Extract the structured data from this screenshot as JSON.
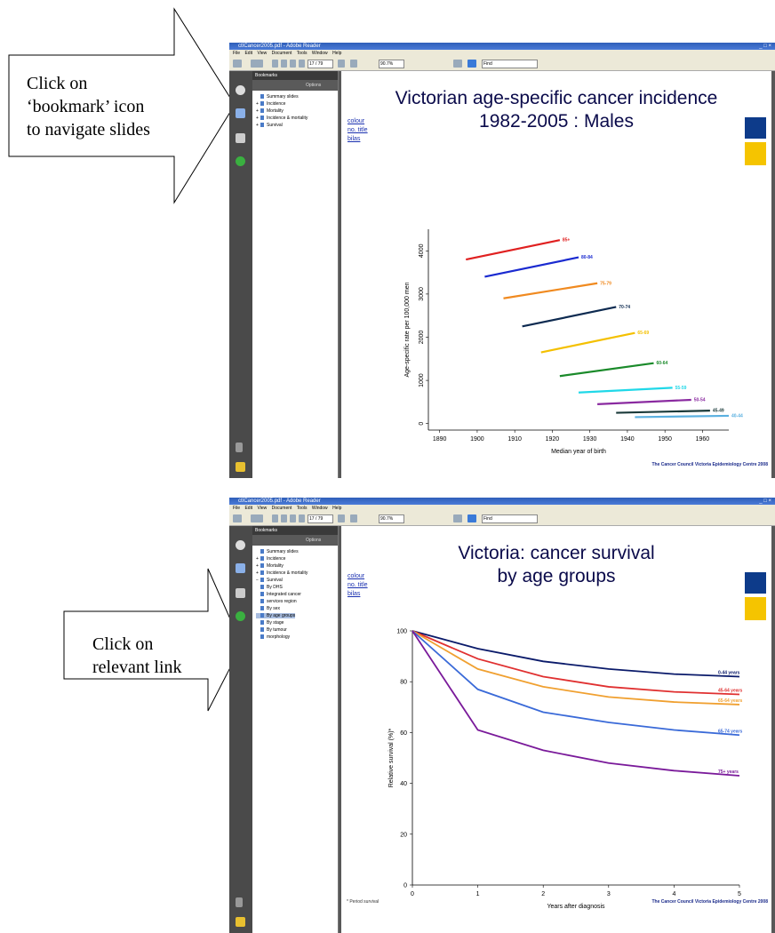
{
  "callout_top": {
    "lines": [
      "Click on",
      "‘bookmark’ icon",
      "to navigate slides"
    ]
  },
  "callout_bottom": {
    "lines": [
      "Click on",
      "relevant link"
    ]
  },
  "app": {
    "window_title": "ctICancer2005.pdf - Adobe Reader",
    "menu": [
      "File",
      "Edit",
      "View",
      "Document",
      "Tools",
      "Window",
      "Help"
    ],
    "page_box": "17 / 79",
    "zoom_box": "90.7%",
    "find_box": "Find",
    "bookmarks_header": "Bookmarks",
    "options_label": "Options"
  },
  "screen1": {
    "bookmarks": [
      {
        "label": "Summary slides",
        "expand": "",
        "selected": false
      },
      {
        "label": "Incidence",
        "expand": "+",
        "selected": false
      },
      {
        "label": "Mortality",
        "expand": "+",
        "selected": false
      },
      {
        "label": "Incidence & mortality",
        "expand": "+",
        "selected": false
      },
      {
        "label": "Survival",
        "expand": "+",
        "selected": false
      }
    ],
    "slide": {
      "title_line1": "Victorian age-specific cancer incidence",
      "title_line2": "1982-2005 : Males",
      "links": [
        "colour",
        "no. title",
        "bilas"
      ],
      "footer": "The Cancer Council Victoria Epidemiology Centre 2008"
    },
    "chart_data": {
      "type": "line",
      "xlabel": "Median year of birth",
      "ylabel": "Age-specific rate per 100,000 men",
      "x_ticks": [
        "1890",
        "1900",
        "1910",
        "1920",
        "1930",
        "1940",
        "1950",
        "1960"
      ],
      "y_ticks": [
        "0",
        "1000",
        "2000",
        "3000",
        "4000"
      ],
      "xlim": [
        1887,
        1967
      ],
      "ylim": [
        -150,
        4500
      ],
      "series": [
        {
          "name": "85+",
          "color": "#e02020",
          "x": [
            1897,
            1922
          ],
          "y": [
            3800,
            4250
          ]
        },
        {
          "name": "80-84",
          "color": "#1a2ad0",
          "x": [
            1902,
            1927
          ],
          "y": [
            3400,
            3850
          ]
        },
        {
          "name": "75-79",
          "color": "#f08a20",
          "x": [
            1907,
            1932
          ],
          "y": [
            2900,
            3250
          ]
        },
        {
          "name": "70-74",
          "color": "#0d2a50",
          "x": [
            1912,
            1937
          ],
          "y": [
            2250,
            2700
          ]
        },
        {
          "name": "65-69",
          "color": "#f4c000",
          "x": [
            1917,
            1942
          ],
          "y": [
            1650,
            2100
          ]
        },
        {
          "name": "60-64",
          "color": "#1a8a2a",
          "x": [
            1922,
            1947
          ],
          "y": [
            1100,
            1400
          ]
        },
        {
          "name": "55-59",
          "color": "#20d8e8",
          "x": [
            1927,
            1952
          ],
          "y": [
            720,
            830
          ]
        },
        {
          "name": "50-54",
          "color": "#8a2aa0",
          "x": [
            1932,
            1957
          ],
          "y": [
            450,
            550
          ]
        },
        {
          "name": "45-49",
          "color": "#1a3a3a",
          "x": [
            1937,
            1962
          ],
          "y": [
            250,
            300
          ]
        },
        {
          "name": "40-44",
          "color": "#5ab0e0",
          "x": [
            1942,
            1967
          ],
          "y": [
            150,
            180
          ]
        }
      ]
    }
  },
  "screen2": {
    "bookmarks": [
      {
        "label": "Summary slides",
        "expand": "",
        "selected": false
      },
      {
        "label": "Incidence",
        "expand": "+",
        "selected": false
      },
      {
        "label": "Mortality",
        "expand": "+",
        "selected": false
      },
      {
        "label": "Incidence & mortality",
        "expand": "+",
        "selected": false
      },
      {
        "label": "Survival",
        "expand": "−",
        "selected": false
      },
      {
        "label": "By DHS",
        "expand": "  ",
        "selected": false
      },
      {
        "label": "Integrated cancer",
        "expand": "  ",
        "selected": false
      },
      {
        "label": "services region",
        "expand": "  ",
        "selected": false
      },
      {
        "label": "By sex",
        "expand": "  ",
        "selected": false
      },
      {
        "label": "By age groups",
        "expand": "  ",
        "selected": true
      },
      {
        "label": "By stage",
        "expand": "  ",
        "selected": false
      },
      {
        "label": "By tumour",
        "expand": "  ",
        "selected": false
      },
      {
        "label": "morphology",
        "expand": "  ",
        "selected": false
      }
    ],
    "slide": {
      "title_line1": "Victoria: cancer survival",
      "title_line2": "by age groups",
      "links": [
        "colour",
        "no. title",
        "bilas"
      ],
      "note": "* Period survival",
      "footer": "The Cancer Council Victoria Epidemiology Centre 2008"
    },
    "chart_data": {
      "type": "line",
      "xlabel": "Years after diagnosis",
      "ylabel": "Relative survival (%)*",
      "x_ticks": [
        "0",
        "1",
        "2",
        "3",
        "4",
        "5"
      ],
      "y_ticks": [
        "0",
        "20",
        "40",
        "60",
        "80",
        "100"
      ],
      "xlim": [
        0,
        5
      ],
      "ylim": [
        0,
        100
      ],
      "series": [
        {
          "name": "0-44 years",
          "color": "#0a1a6a",
          "x": [
            0,
            1,
            2,
            3,
            4,
            5
          ],
          "y": [
            100,
            93,
            88,
            85,
            83,
            82
          ]
        },
        {
          "name": "45-64 years",
          "color": "#e03030",
          "x": [
            0,
            1,
            2,
            3,
            4,
            5
          ],
          "y": [
            100,
            89,
            82,
            78,
            76,
            75
          ]
        },
        {
          "name": "65-64 years",
          "color": "#f0a030",
          "x": [
            0,
            1,
            2,
            3,
            4,
            5
          ],
          "y": [
            100,
            85,
            78,
            74,
            72,
            71
          ]
        },
        {
          "name": "65-74 years",
          "color": "#3a6ad8",
          "x": [
            0,
            1,
            2,
            3,
            4,
            5
          ],
          "y": [
            100,
            77,
            68,
            64,
            61,
            59
          ]
        },
        {
          "name": "75+ years",
          "color": "#7a1a9a",
          "x": [
            0,
            1,
            2,
            3,
            4,
            5
          ],
          "y": [
            100,
            61,
            53,
            48,
            45,
            43
          ]
        }
      ]
    }
  }
}
